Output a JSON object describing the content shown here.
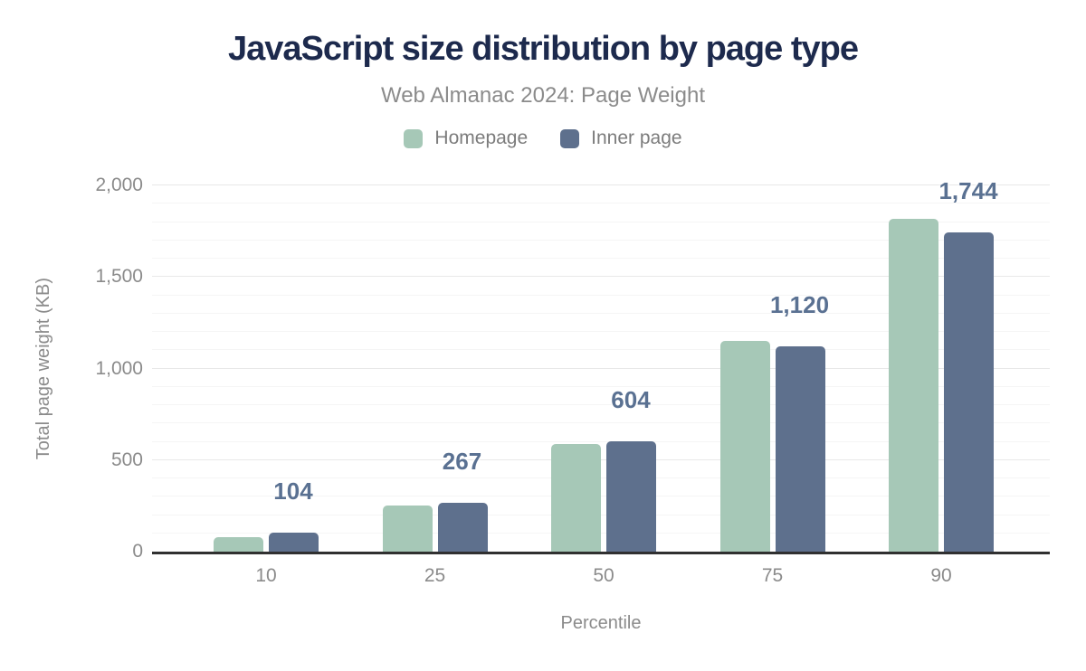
{
  "header": {
    "title": "JavaScript size distribution by page type",
    "subtitle": "Web Almanac 2024: Page Weight"
  },
  "chart_data": {
    "type": "bar",
    "title": "JavaScript size distribution by page type",
    "subtitle": "Web Almanac 2024: Page Weight",
    "categories": [
      "10",
      "25",
      "50",
      "75",
      "90"
    ],
    "series": [
      {
        "name": "Homepage",
        "color": "#a6c8b7",
        "values": [
          78,
          250,
          587,
          1152,
          1818
        ]
      },
      {
        "name": "Inner page",
        "color": "#5e708d",
        "values": [
          104,
          267,
          604,
          1120,
          1744
        ]
      }
    ],
    "value_labels": {
      "series_index": 1,
      "series_name": "Inner page",
      "texts": [
        "104",
        "267",
        "604",
        "1,120",
        "1,744"
      ]
    },
    "xlabel": "Percentile",
    "ylabel": "Total page weight (KB)",
    "ylim": [
      0,
      2000
    ],
    "y_major_step": 500,
    "y_minor_step": 100,
    "y_major_ticks": [
      "0",
      "500",
      "1,000",
      "1,500",
      "2,000"
    ],
    "grid": "horizontal",
    "legend_position": "top"
  },
  "colors": {
    "title": "#1d2a4d",
    "muted_text": "#8b8b8b",
    "legend_text": "#7c7c7c",
    "homepage": "#a6c8b7",
    "inner_page": "#5e708d",
    "value_label": "#5a7192",
    "axis_line": "#303030",
    "gridline_major": "#e8e8e8",
    "gridline_minor": "#f5f5f5"
  }
}
